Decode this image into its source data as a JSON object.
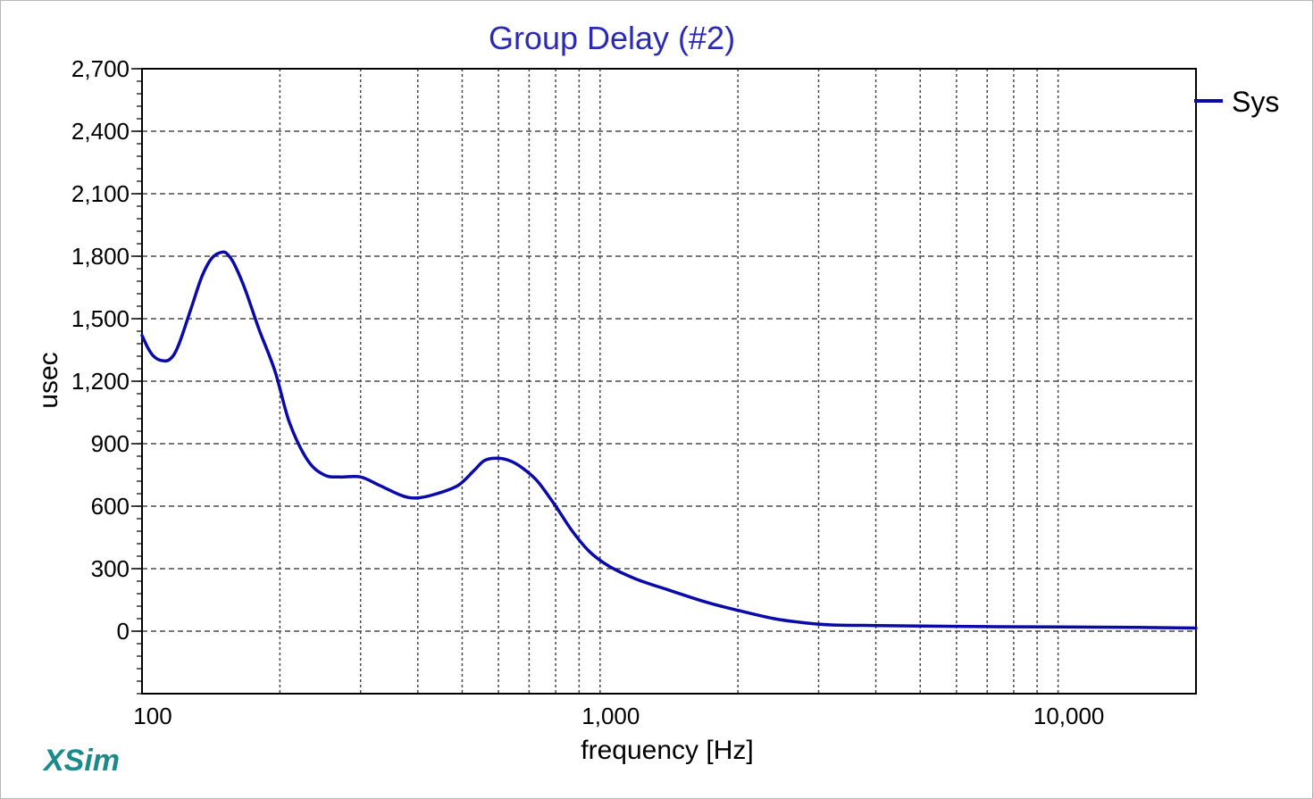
{
  "brand": {
    "logo_text": "XSim",
    "logo_color": "#1a8a8a"
  },
  "chart_data": {
    "type": "line",
    "title": "Group Delay (#2)",
    "title_color": "#2a2ab4",
    "xlabel": "frequency [Hz]",
    "ylabel": "usec",
    "x_scale": "log",
    "xlim": [
      100,
      20000
    ],
    "ylim": [
      -300,
      2700
    ],
    "y_ticks": [
      0,
      300,
      600,
      900,
      1200,
      1500,
      1800,
      2100,
      2400,
      2700
    ],
    "y_tick_labels": [
      "0",
      "300",
      "600",
      "900",
      "1,200",
      "1,500",
      "1,800",
      "2,100",
      "2,400",
      "2,700"
    ],
    "x_tick_labels": [
      {
        "value": 100,
        "label": "100"
      },
      {
        "value": 1000,
        "label": "1,000"
      },
      {
        "value": 10000,
        "label": "10,000"
      }
    ],
    "grid": true,
    "legend": {
      "placement": "top-right"
    },
    "series": [
      {
        "name": "Sys",
        "color": "#0a0aa8",
        "x": [
          100,
          103,
          106,
          110,
          115,
          120,
          128,
          135,
          142,
          150,
          155,
          160,
          168,
          180,
          195,
          210,
          230,
          250,
          270,
          300,
          330,
          370,
          400,
          440,
          490,
          530,
          560,
          600,
          640,
          680,
          730,
          800,
          870,
          950,
          1050,
          1200,
          1400,
          1700,
          2000,
          2400,
          2800,
          3200,
          4000,
          5000,
          7000,
          10000,
          15000,
          20000
        ],
        "y": [
          1420,
          1360,
          1320,
          1300,
          1305,
          1370,
          1550,
          1700,
          1790,
          1820,
          1800,
          1750,
          1640,
          1450,
          1250,
          1000,
          820,
          750,
          740,
          740,
          700,
          650,
          640,
          660,
          700,
          770,
          820,
          830,
          815,
          780,
          720,
          600,
          480,
          380,
          310,
          250,
          200,
          140,
          100,
          60,
          40,
          30,
          27,
          25,
          22,
          20,
          18,
          15
        ]
      }
    ]
  }
}
